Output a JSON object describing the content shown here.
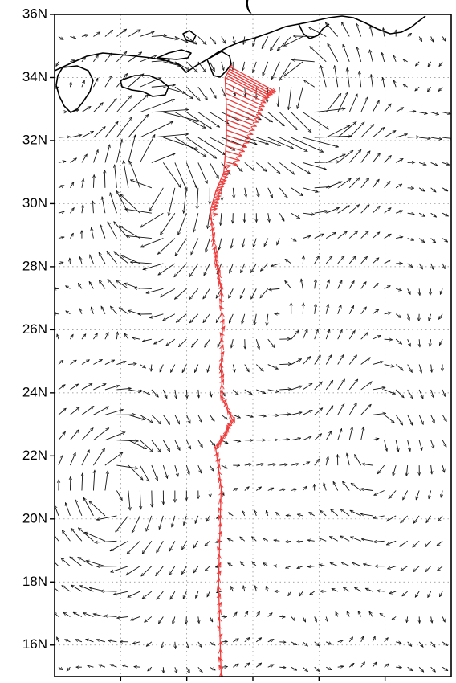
{
  "map": {
    "title_fragment": "(",
    "lat_range": [
      15,
      36
    ],
    "lon_range": [
      120,
      150
    ],
    "lat_ticks": [
      {
        "value": 36,
        "label": "36N"
      },
      {
        "value": 34,
        "label": "34N"
      },
      {
        "value": 32,
        "label": "32N"
      },
      {
        "value": 30,
        "label": "30N"
      },
      {
        "value": 28,
        "label": "28N"
      },
      {
        "value": 26,
        "label": "26N"
      },
      {
        "value": 24,
        "label": "24N"
      },
      {
        "value": 22,
        "label": "22N"
      },
      {
        "value": 20,
        "label": "20N"
      },
      {
        "value": 18,
        "label": "18N"
      },
      {
        "value": 16,
        "label": "16N"
      }
    ],
    "lon_ticks": [
      125,
      130,
      135,
      140,
      145
    ],
    "vector_color": "#111111",
    "track_color": "#ee3b3b",
    "vortices": [
      {
        "lon": 127.5,
        "lat": 31.0,
        "strength": 1.6,
        "spin": "anticyclonic"
      },
      {
        "lon": 124.5,
        "lat": 20.8,
        "strength": 1.1,
        "spin": "anticyclonic"
      },
      {
        "lon": 139.5,
        "lat": 33.5,
        "strength": 1.2,
        "spin": "cyclonic"
      },
      {
        "lon": 137.0,
        "lat": 26.5,
        "strength": 0.5,
        "spin": "cyclonic"
      },
      {
        "lon": 144.0,
        "lat": 22.5,
        "strength": 0.5,
        "spin": "anticyclonic"
      }
    ],
    "track": [
      {
        "lon": 132.6,
        "lat": 15.0
      },
      {
        "lon": 132.5,
        "lat": 16.5
      },
      {
        "lon": 132.4,
        "lat": 18.0
      },
      {
        "lon": 132.5,
        "lat": 19.5
      },
      {
        "lon": 132.6,
        "lat": 21.0
      },
      {
        "lon": 132.2,
        "lat": 22.2
      },
      {
        "lon": 132.8,
        "lat": 22.6
      },
      {
        "lon": 133.5,
        "lat": 23.1
      },
      {
        "lon": 132.7,
        "lat": 23.8
      },
      {
        "lon": 132.6,
        "lat": 24.8
      },
      {
        "lon": 132.7,
        "lat": 26.0
      },
      {
        "lon": 132.6,
        "lat": 27.3
      },
      {
        "lon": 132.3,
        "lat": 28.0
      },
      {
        "lon": 132.0,
        "lat": 28.8
      },
      {
        "lon": 131.8,
        "lat": 29.8
      },
      {
        "lon": 132.2,
        "lat": 30.4
      },
      {
        "lon": 132.8,
        "lat": 31.0
      },
      {
        "lon": 133.0,
        "lat": 32.0
      },
      {
        "lon": 133.0,
        "lat": 33.0
      },
      {
        "lon": 132.9,
        "lat": 34.0
      },
      {
        "lon": 133.4,
        "lat": 34.4
      }
    ]
  }
}
